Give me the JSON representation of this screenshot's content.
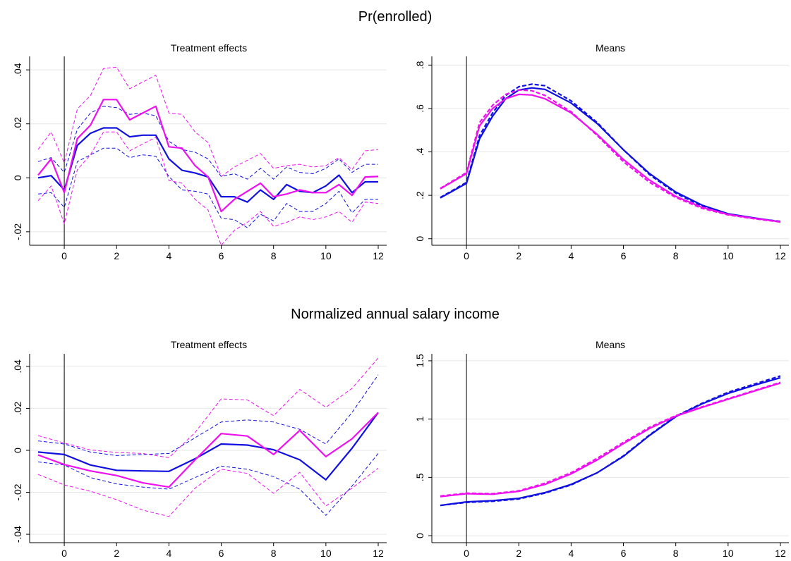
{
  "colors": {
    "blue": "#1010e0",
    "magenta": "#ee10ee",
    "grid": "#e6e6e6",
    "axis": "#000000"
  },
  "rows": [
    {
      "title": "Pr(enrolled)"
    },
    {
      "title": "Normalized annual salary income"
    }
  ],
  "chart_data": [
    {
      "type": "line",
      "panel": "enrolled-effects",
      "title": "Treatment effects",
      "xlim": [
        -1,
        12
      ],
      "ylim": [
        -0.025,
        0.045
      ],
      "xticks": [
        0,
        2,
        4,
        6,
        8,
        10,
        12
      ],
      "xtick_labels": [
        "0",
        "2",
        "4",
        "6",
        "8",
        "10",
        "12"
      ],
      "yticks": [
        -0.02,
        0,
        0.02,
        0.04
      ],
      "ytick_labels": [
        "-.02",
        "0",
        ".02",
        ".04"
      ],
      "vline": 0,
      "grid": true,
      "series": [
        {
          "color": "blue",
          "style": "solid",
          "x": [
            -1,
            -0.5,
            0,
            0.5,
            1,
            1.5,
            2,
            2.5,
            3,
            3.5,
            4,
            4.5,
            5,
            5.5,
            6,
            6.5,
            7,
            7.5,
            8,
            8.5,
            9,
            9.5,
            10,
            10.5,
            11,
            11.5,
            12
          ],
          "y": [
            0,
            0.0008,
            -0.0045,
            0.012,
            0.0165,
            0.0185,
            0.0185,
            0.0152,
            0.0158,
            0.0158,
            0.007,
            0.0028,
            0.0018,
            0.0003,
            -0.007,
            -0.007,
            -0.009,
            -0.0045,
            -0.008,
            -0.0025,
            -0.005,
            -0.0055,
            -0.003,
            0.001,
            -0.0055,
            -0.0015,
            -0.0015
          ]
        },
        {
          "color": "blue",
          "style": "dashed",
          "x": [
            -1,
            -0.5,
            0,
            0.5,
            1,
            1.5,
            2,
            2.5,
            3,
            3.5,
            4,
            4.5,
            5,
            5.5,
            6,
            6.5,
            7,
            7.5,
            8,
            8.5,
            9,
            9.5,
            10,
            10.5,
            11,
            11.5,
            12
          ],
          "y": [
            0.006,
            0.0075,
            0.002,
            0.018,
            0.024,
            0.0265,
            0.026,
            0.0235,
            0.024,
            0.023,
            0.0135,
            0.0105,
            0.0095,
            0.007,
            0.0005,
            0.0015,
            -0.0005,
            0.0035,
            -0.0005,
            0.004,
            0.002,
            0.0015,
            0.0035,
            0.007,
            0.002,
            0.005,
            0.005
          ]
        },
        {
          "color": "blue",
          "style": "dashed",
          "x": [
            -1,
            -0.5,
            0,
            0.5,
            1,
            1.5,
            2,
            2.5,
            3,
            3.5,
            4,
            4.5,
            5,
            5.5,
            6,
            6.5,
            7,
            7.5,
            8,
            8.5,
            9,
            9.5,
            10,
            10.5,
            11,
            11.5,
            12
          ],
          "y": [
            -0.006,
            -0.0055,
            -0.011,
            0.006,
            0.0085,
            0.011,
            0.011,
            0.0075,
            0.0085,
            0.008,
            0.0005,
            -0.0045,
            -0.005,
            -0.006,
            -0.015,
            -0.0155,
            -0.0185,
            -0.0135,
            -0.016,
            -0.0095,
            -0.0125,
            -0.0125,
            -0.0095,
            -0.005,
            -0.013,
            -0.008,
            -0.008
          ]
        },
        {
          "color": "magenta",
          "style": "solid",
          "x": [
            -1,
            -0.5,
            0,
            0.5,
            1,
            1.5,
            2,
            2.5,
            3,
            3.5,
            4,
            4.5,
            5,
            5.5,
            6,
            6.5,
            7,
            7.5,
            8,
            8.5,
            9,
            9.5,
            10,
            10.5,
            11,
            11.5,
            12
          ],
          "y": [
            0.001,
            0.007,
            -0.0055,
            0.0145,
            0.0195,
            0.029,
            0.029,
            0.0215,
            0.024,
            0.0265,
            0.0115,
            0.011,
            0.0045,
            0.0003,
            -0.0125,
            -0.008,
            -0.005,
            -0.002,
            -0.007,
            -0.006,
            -0.0045,
            -0.0055,
            -0.0055,
            -0.0025,
            -0.0065,
            0.0003,
            0.0005
          ]
        },
        {
          "color": "magenta",
          "style": "dashed",
          "x": [
            -1,
            -0.5,
            0,
            0.5,
            1,
            1.5,
            2,
            2.5,
            3,
            3.5,
            4,
            4.5,
            5,
            5.5,
            6,
            6.5,
            7,
            7.5,
            8,
            8.5,
            9,
            9.5,
            10,
            10.5,
            11,
            11.5,
            12
          ],
          "y": [
            0.0105,
            0.017,
            0.0055,
            0.0255,
            0.0305,
            0.0405,
            0.041,
            0.033,
            0.0355,
            0.038,
            0.024,
            0.0235,
            0.017,
            0.013,
            0.0005,
            0.004,
            0.0065,
            0.009,
            0.0035,
            0.0045,
            0.005,
            0.004,
            0.0045,
            0.0075,
            0.003,
            0.01,
            0.0105
          ]
        },
        {
          "color": "magenta",
          "style": "dashed",
          "x": [
            -1,
            -0.5,
            0,
            0.5,
            1,
            1.5,
            2,
            2.5,
            3,
            3.5,
            4,
            4.5,
            5,
            5.5,
            6,
            6.5,
            7,
            7.5,
            8,
            8.5,
            9,
            9.5,
            10,
            10.5,
            11,
            11.5,
            12
          ],
          "y": [
            -0.0085,
            -0.003,
            -0.017,
            0.003,
            0.0085,
            0.017,
            0.017,
            0.01,
            0.0125,
            0.015,
            -0.001,
            -0.002,
            -0.008,
            -0.012,
            -0.025,
            -0.0195,
            -0.0165,
            -0.0125,
            -0.018,
            -0.0165,
            -0.0145,
            -0.0155,
            -0.0145,
            -0.0125,
            -0.0165,
            -0.009,
            -0.0095
          ]
        }
      ]
    },
    {
      "type": "line",
      "panel": "enrolled-means",
      "title": "Means",
      "xlim": [
        -1,
        12
      ],
      "ylim": [
        -0.03,
        0.84
      ],
      "xticks": [
        0,
        2,
        4,
        6,
        8,
        10,
        12
      ],
      "xtick_labels": [
        "0",
        "2",
        "4",
        "6",
        "8",
        "10",
        "12"
      ],
      "yticks": [
        0,
        0.2,
        0.4,
        0.6,
        0.8
      ],
      "ytick_labels": [
        "0",
        ".2",
        ".4",
        ".6",
        ".8"
      ],
      "vline": 0,
      "grid": true,
      "series": [
        {
          "color": "blue",
          "style": "solid",
          "x": [
            -1,
            0,
            0.5,
            1,
            1.5,
            2,
            2.5,
            3,
            4,
            5,
            6,
            7,
            8,
            9,
            10,
            11,
            12
          ],
          "y": [
            0.188,
            0.255,
            0.46,
            0.565,
            0.645,
            0.685,
            0.695,
            0.688,
            0.625,
            0.53,
            0.41,
            0.3,
            0.215,
            0.155,
            0.115,
            0.096,
            0.078
          ]
        },
        {
          "color": "blue",
          "style": "dashed",
          "x": [
            -1,
            0,
            0.5,
            1,
            1.5,
            2,
            2.5,
            3,
            4,
            5,
            6,
            7,
            8,
            9,
            10,
            11,
            12
          ],
          "y": [
            0.19,
            0.26,
            0.475,
            0.58,
            0.66,
            0.7,
            0.712,
            0.705,
            0.635,
            0.535,
            0.41,
            0.295,
            0.21,
            0.15,
            0.113,
            0.094,
            0.08
          ]
        },
        {
          "color": "magenta",
          "style": "solid",
          "x": [
            -1,
            0,
            0.5,
            1,
            1.5,
            2,
            2.5,
            3,
            4,
            5,
            6,
            7,
            8,
            9,
            10,
            11,
            12
          ],
          "y": [
            0.23,
            0.3,
            0.52,
            0.6,
            0.645,
            0.665,
            0.662,
            0.645,
            0.58,
            0.48,
            0.365,
            0.27,
            0.195,
            0.145,
            0.112,
            0.094,
            0.078
          ]
        },
        {
          "color": "magenta",
          "style": "dashed",
          "x": [
            -1,
            0,
            0.5,
            1,
            1.5,
            2,
            2.5,
            3,
            4,
            5,
            6,
            7,
            8,
            9,
            10,
            11,
            12
          ],
          "y": [
            0.232,
            0.305,
            0.535,
            0.615,
            0.665,
            0.685,
            0.682,
            0.66,
            0.585,
            0.475,
            0.355,
            0.26,
            0.19,
            0.14,
            0.11,
            0.092,
            0.077
          ]
        }
      ]
    },
    {
      "type": "line",
      "panel": "salary-effects",
      "title": "Treatment effects",
      "xlim": [
        -1,
        12
      ],
      "ylim": [
        -0.044,
        0.046
      ],
      "xticks": [
        0,
        2,
        4,
        6,
        8,
        10,
        12
      ],
      "xtick_labels": [
        "0",
        "2",
        "4",
        "6",
        "8",
        "10",
        "12"
      ],
      "yticks": [
        -0.04,
        -0.02,
        0,
        0.02,
        0.04
      ],
      "ytick_labels": [
        "-.04",
        "-.02",
        "0",
        ".02",
        ".04"
      ],
      "vline": 0,
      "grid": true,
      "series": [
        {
          "color": "blue",
          "style": "solid",
          "x": [
            -1,
            0,
            1,
            2,
            3,
            4,
            5,
            6,
            7,
            8,
            9,
            10,
            11,
            12
          ],
          "y": [
            -0.0008,
            -0.002,
            -0.007,
            -0.0095,
            -0.0098,
            -0.01,
            -0.004,
            0.003,
            0.0025,
            0.0003,
            -0.0045,
            -0.014,
            0.001,
            0.018
          ]
        },
        {
          "color": "blue",
          "style": "dashed",
          "x": [
            -1,
            0,
            1,
            2,
            3,
            4,
            5,
            6,
            7,
            8,
            9,
            10,
            11,
            12
          ],
          "y": [
            0.0045,
            0.003,
            -0.0008,
            -0.0025,
            -0.002,
            -0.0015,
            0.006,
            0.0135,
            0.0145,
            0.0135,
            0.01,
            0.003,
            0.018,
            0.036
          ]
        },
        {
          "color": "blue",
          "style": "dashed",
          "x": [
            -1,
            0,
            1,
            2,
            3,
            4,
            5,
            6,
            7,
            8,
            9,
            10,
            11,
            12
          ],
          "y": [
            -0.0055,
            -0.007,
            -0.013,
            -0.016,
            -0.0175,
            -0.0185,
            -0.013,
            -0.0075,
            -0.009,
            -0.0125,
            -0.0185,
            -0.031,
            -0.017,
            -0.0015
          ]
        },
        {
          "color": "magenta",
          "style": "solid",
          "x": [
            -1,
            0,
            1,
            2,
            3,
            4,
            5,
            6,
            7,
            8,
            9,
            10,
            11,
            12
          ],
          "y": [
            -0.0022,
            -0.0068,
            -0.0098,
            -0.012,
            -0.0155,
            -0.0175,
            -0.0045,
            0.008,
            0.0068,
            -0.002,
            0.0095,
            -0.003,
            0.0055,
            0.018
          ]
        },
        {
          "color": "magenta",
          "style": "dashed",
          "x": [
            -1,
            0,
            1,
            2,
            3,
            4,
            5,
            6,
            7,
            8,
            9,
            10,
            11,
            12
          ],
          "y": [
            0.007,
            0.0035,
            0.0002,
            -0.001,
            -0.0015,
            -0.0035,
            0.0085,
            0.0245,
            0.024,
            0.0165,
            0.029,
            0.0205,
            0.0295,
            0.044
          ]
        },
        {
          "color": "magenta",
          "style": "dashed",
          "x": [
            -1,
            0,
            1,
            2,
            3,
            4,
            5,
            6,
            7,
            8,
            9,
            10,
            11,
            12
          ],
          "y": [
            -0.0115,
            -0.0165,
            -0.0195,
            -0.0235,
            -0.0285,
            -0.0315,
            -0.018,
            -0.009,
            -0.011,
            -0.0205,
            -0.0105,
            -0.0265,
            -0.018,
            -0.0085
          ]
        }
      ]
    },
    {
      "type": "line",
      "panel": "salary-means",
      "title": "Means",
      "xlim": [
        -1,
        12
      ],
      "ylim": [
        -0.06,
        1.56
      ],
      "xticks": [
        0,
        2,
        4,
        6,
        8,
        10,
        12
      ],
      "xtick_labels": [
        "0",
        "2",
        "4",
        "6",
        "8",
        "10",
        "12"
      ],
      "yticks": [
        0,
        0.5,
        1,
        1.5
      ],
      "ytick_labels": [
        "0",
        ".5",
        "1",
        "1.5"
      ],
      "vline": 0,
      "grid": true,
      "series": [
        {
          "color": "blue",
          "style": "solid",
          "x": [
            -1,
            0,
            1,
            2,
            3,
            4,
            5,
            6,
            7,
            8,
            9,
            10,
            11,
            12
          ],
          "y": [
            0.26,
            0.29,
            0.3,
            0.32,
            0.37,
            0.44,
            0.54,
            0.68,
            0.86,
            1.02,
            1.13,
            1.22,
            1.29,
            1.355
          ]
        },
        {
          "color": "blue",
          "style": "dashed",
          "x": [
            -1,
            0,
            1,
            2,
            3,
            4,
            5,
            6,
            7,
            8,
            9,
            10,
            11,
            12
          ],
          "y": [
            0.26,
            0.285,
            0.295,
            0.315,
            0.365,
            0.435,
            0.54,
            0.685,
            0.865,
            1.025,
            1.135,
            1.23,
            1.3,
            1.37
          ]
        },
        {
          "color": "magenta",
          "style": "solid",
          "x": [
            -1,
            0,
            1,
            2,
            3,
            4,
            5,
            6,
            7,
            8,
            9,
            10,
            11,
            12
          ],
          "y": [
            0.335,
            0.36,
            0.355,
            0.38,
            0.44,
            0.53,
            0.65,
            0.79,
            0.92,
            1.025,
            1.1,
            1.17,
            1.24,
            1.31
          ]
        },
        {
          "color": "magenta",
          "style": "dashed",
          "x": [
            -1,
            0,
            1,
            2,
            3,
            4,
            5,
            6,
            7,
            8,
            9,
            10,
            11,
            12
          ],
          "y": [
            0.34,
            0.365,
            0.36,
            0.385,
            0.45,
            0.54,
            0.665,
            0.8,
            0.93,
            1.03,
            1.105,
            1.175,
            1.245,
            1.315
          ]
        }
      ]
    }
  ]
}
